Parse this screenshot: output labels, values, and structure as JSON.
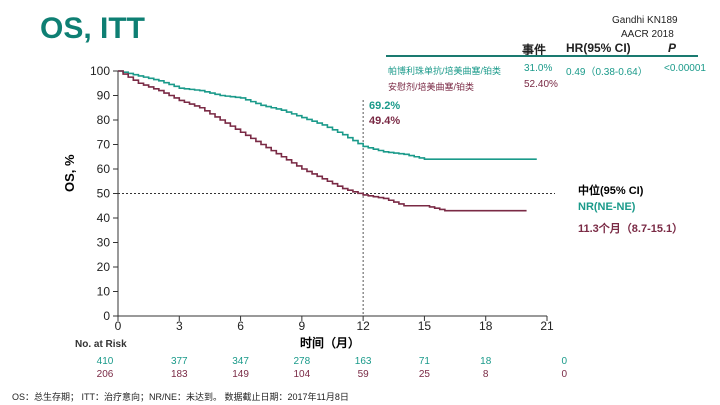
{
  "title": "OS, ITT",
  "source": [
    "Gandhi KN189",
    "AACR 2018"
  ],
  "table": {
    "headers": [
      "事件",
      "HR(95% CI)",
      "P"
    ],
    "rows": [
      {
        "arm": "帕博利珠单抗/培美曲塞/铂类",
        "events": "31.0%",
        "hr": "0.49（0.38-0.64）",
        "p": "<0.00001"
      },
      {
        "arm": "安慰剂/培美曲塞/铂类",
        "events": "52.40%",
        "hr": "",
        "p": ""
      }
    ]
  },
  "median": {
    "label": "中位(95% CI)",
    "arm1": "NR(NE-NE)",
    "arm2": "11.3个月（8.7-15.1）"
  },
  "landmark": {
    "arm1": "69.2%",
    "arm2": "49.4%"
  },
  "risk": {
    "label": "No. at Risk",
    "arm1": [
      "410",
      "377",
      "347",
      "278",
      "163",
      "71",
      "18",
      "0"
    ],
    "arm2": [
      "206",
      "183",
      "149",
      "104",
      "59",
      "25",
      "8",
      "0"
    ]
  },
  "footnote": "OS：总生存期； ITT：治疗意向；NR/NE：未达到。 数据截止日期：2017年11月8日",
  "colors": {
    "arm1": "#1a9a8a",
    "arm2": "#7a2a45"
  },
  "chart_data": {
    "type": "line",
    "title": "OS, ITT",
    "xlabel": "时间（月）",
    "ylabel": "OS, %",
    "xlim": [
      0,
      21
    ],
    "ylim": [
      0,
      100
    ],
    "xticks": [
      "0",
      "3",
      "6",
      "9",
      "12",
      "15",
      "18",
      "21"
    ],
    "yticks": [
      "0",
      "10",
      "20",
      "30",
      "40",
      "50",
      "60",
      "70",
      "80",
      "90",
      "100"
    ],
    "series": [
      {
        "name": "帕博利珠单抗/培美曲塞/铂类",
        "x": [
          0,
          1,
          2,
          3,
          4,
          5,
          6,
          7,
          8,
          9,
          10,
          11,
          12,
          13,
          14,
          15,
          16,
          17,
          18,
          19,
          20,
          20.5
        ],
        "y": [
          100,
          98,
          96,
          93,
          92,
          90,
          89,
          86,
          84,
          81,
          78,
          74,
          69.2,
          67,
          66,
          64,
          64,
          64,
          64,
          64,
          64,
          64
        ]
      },
      {
        "name": "安慰剂/培美曲塞/铂类",
        "x": [
          0,
          1,
          2,
          3,
          4,
          5,
          6,
          7,
          8,
          9,
          10,
          11,
          12,
          13,
          14,
          15,
          16,
          17,
          18,
          19,
          20
        ],
        "y": [
          100,
          95,
          92,
          88,
          85,
          80,
          75,
          70,
          65,
          60,
          56,
          52,
          49.4,
          48,
          45,
          45,
          43,
          43,
          43,
          43,
          43
        ]
      }
    ]
  }
}
